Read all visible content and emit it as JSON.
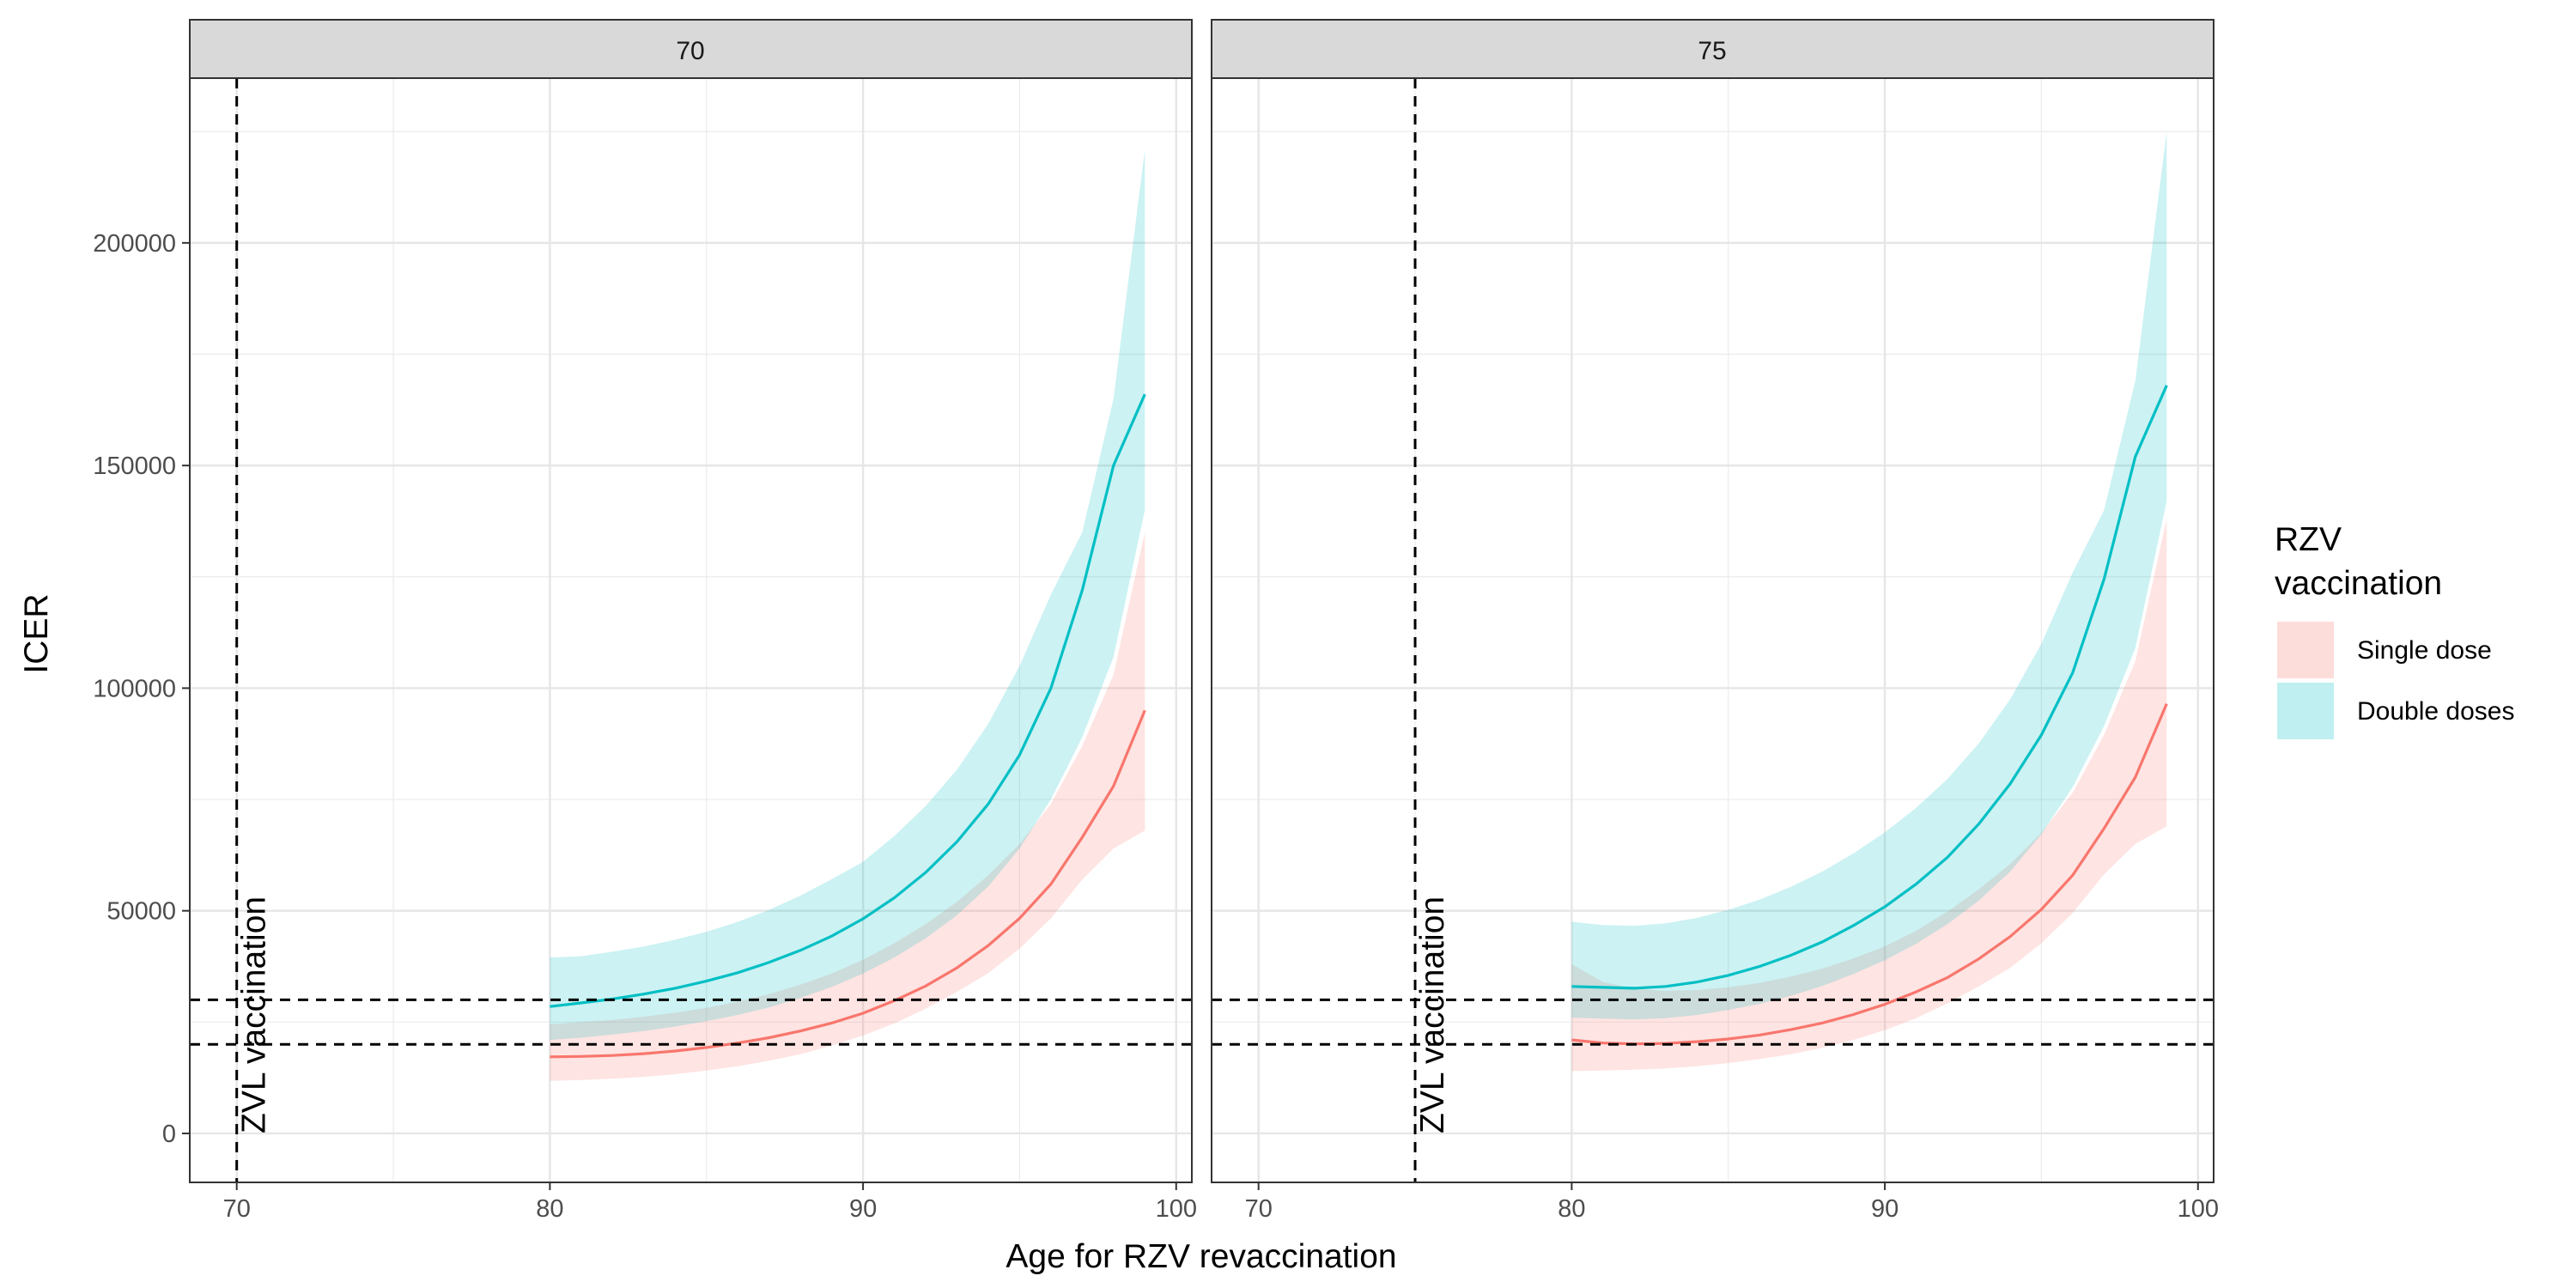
{
  "chart_data": {
    "type": "line",
    "xlabel": "Age for RZV revaccination",
    "ylabel": "ICER",
    "xlim": [
      68.5,
      100.5
    ],
    "ylim": [
      -11000,
      237000
    ],
    "x_ticks": [
      70,
      80,
      90,
      100
    ],
    "x_tick_labels": [
      "70",
      "80",
      "90",
      "100"
    ],
    "y_ticks": [
      0,
      50000,
      100000,
      150000,
      200000
    ],
    "y_tick_labels": [
      "0",
      "50000",
      "100000",
      "150000",
      "200000"
    ],
    "thresholds": [
      20000,
      30000
    ],
    "legend": {
      "title_lines": [
        "RZV",
        "vaccination"
      ],
      "entries": [
        {
          "label": "Single dose",
          "color": "#F8766D"
        },
        {
          "label": "Double doses",
          "color": "#00BFC4"
        }
      ],
      "position": "right"
    },
    "panels": [
      {
        "strip": "70",
        "vline": 70,
        "annotation": "ZVL vaccination",
        "x": [
          80,
          81,
          82,
          83,
          84,
          85,
          86,
          87,
          88,
          89,
          90,
          91,
          92,
          93,
          94,
          95,
          96,
          97,
          98,
          99
        ],
        "series": [
          {
            "name": "Single dose",
            "color": "#F8766D",
            "values": [
              17200,
              17300,
              17500,
              17900,
              18500,
              19300,
              20300,
              21500,
              23000,
              24800,
              27000,
              29800,
              33100,
              37200,
              42200,
              48300,
              56000,
              66500,
              78000,
              95000
            ],
            "lower": [
              11800,
              12000,
              12300,
              12700,
              13300,
              14100,
              15100,
              16300,
              17800,
              19700,
              22000,
              24700,
              28000,
              31800,
              36000,
              41500,
              48300,
              57000,
              64000,
              68000
            ],
            "upper": [
              24500,
              25000,
              25500,
              26200,
              27100,
              28200,
              29600,
              31300,
              33400,
              35900,
              39000,
              42700,
              47000,
              52000,
              58000,
              65000,
              74000,
              87000,
              103000,
              135000
            ]
          },
          {
            "name": "Double doses",
            "color": "#00BFC4",
            "values": [
              28500,
              29300,
              30200,
              31300,
              32600,
              34200,
              36100,
              38400,
              41100,
              44300,
              48200,
              52900,
              58600,
              65500,
              74000,
              85000,
              100000,
              122000,
              150000,
              166000
            ],
            "lower": [
              21000,
              21500,
              22200,
              23000,
              24000,
              25200,
              26600,
              28300,
              30400,
              32900,
              35900,
              39500,
              43800,
              49000,
              55500,
              64000,
              75000,
              89000,
              107000,
              140000
            ],
            "upper": [
              39500,
              39800,
              40800,
              42000,
              43500,
              45300,
              47500,
              50200,
              53400,
              57100,
              61000,
              66800,
              73500,
              81700,
              92000,
              105000,
              121000,
              135000,
              165000,
              221000
            ]
          }
        ]
      },
      {
        "strip": "75",
        "vline": 75,
        "annotation": "ZVL vaccination",
        "x": [
          80,
          81,
          82,
          83,
          84,
          85,
          86,
          87,
          88,
          89,
          90,
          91,
          92,
          93,
          94,
          95,
          96,
          97,
          98,
          99
        ],
        "series": [
          {
            "name": "Single dose",
            "color": "#F8766D",
            "values": [
              21000,
              20300,
              20100,
              20200,
              20600,
              21200,
              22100,
              23300,
              24800,
              26700,
              29000,
              31800,
              35000,
              39200,
              44200,
              50300,
              58000,
              68500,
              80000,
              96500
            ],
            "lower": [
              14000,
              14100,
              14300,
              14600,
              15100,
              15800,
              16700,
              17800,
              19200,
              21000,
              23200,
              25900,
              29200,
              33000,
              37200,
              42700,
              49500,
              58200,
              65000,
              69000
            ],
            "upper": [
              38000,
              34000,
              32500,
              32000,
              32200,
              32800,
              33800,
              35200,
              37000,
              39300,
              42000,
              45500,
              49800,
              54800,
              60500,
              67500,
              76500,
              89500,
              106000,
              138000
            ]
          },
          {
            "name": "Double doses",
            "color": "#00BFC4",
            "values": [
              33000,
              32800,
              32600,
              33000,
              34000,
              35500,
              37500,
              40000,
              43000,
              46700,
              50900,
              56000,
              62000,
              69500,
              78500,
              89500,
              103500,
              124500,
              152000,
              168000
            ],
            "lower": [
              26000,
              25800,
              25600,
              25900,
              26600,
              27700,
              29100,
              30900,
              33100,
              35800,
              38900,
              42600,
              47000,
              52300,
              58800,
              67200,
              77800,
              91500,
              109000,
              142000
            ],
            "upper": [
              47500,
              46800,
              46600,
              47200,
              48400,
              50200,
              52500,
              55400,
              58800,
              62900,
              67600,
              73100,
              79600,
              87600,
              97500,
              110000,
              126000,
              140000,
              169000,
              225000
            ]
          }
        ]
      }
    ]
  }
}
